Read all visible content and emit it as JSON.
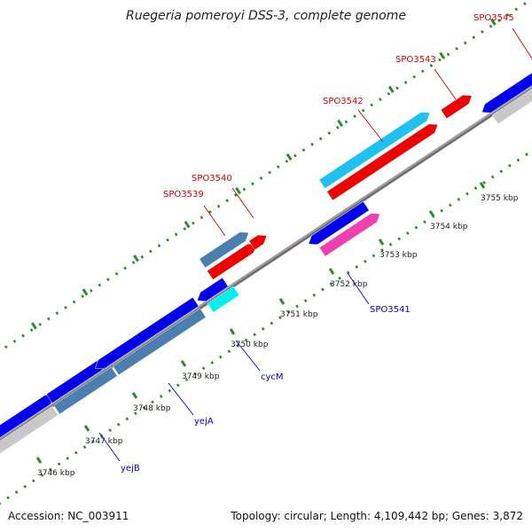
{
  "header": {
    "title": "Ruegeria pomeroyi DSS-3, complete genome"
  },
  "footer": {
    "accession": "Accession: NC_003911",
    "summary": "Topology: circular; Length: 4,109,442 bp; Genes: 3,872"
  },
  "colors": {
    "backbone": "#808080",
    "tick_green": "#2e8b2e",
    "label_forward": "#d00000",
    "label_reverse": "#0000c0",
    "gene_blue": "#0000ee",
    "gene_red": "#ee0000",
    "gene_steel": "#4a7fb0",
    "gene_grey": "#c8c8c8",
    "gene_cyan": "#00f0f0",
    "gene_skyblue": "#20c0f0",
    "gene_magenta": "#f040b0"
  },
  "ticks": [
    {
      "label": "3746 kbp"
    },
    {
      "label": "3747 kbp"
    },
    {
      "label": "3748 kbp"
    },
    {
      "label": "3749 kbp"
    },
    {
      "label": "3750 kbp"
    },
    {
      "label": "3751 kbp"
    },
    {
      "label": "3752 kbp"
    },
    {
      "label": "3753 kbp"
    },
    {
      "label": "3754 kbp"
    },
    {
      "label": "3755 kbp"
    }
  ],
  "gene_labels": [
    {
      "name": "SPO3539",
      "color": "forward"
    },
    {
      "name": "SPO3540",
      "color": "forward"
    },
    {
      "name": "SPO3542",
      "color": "forward"
    },
    {
      "name": "SPO3543",
      "color": "forward"
    },
    {
      "name": "SPO3545",
      "color": "forward"
    },
    {
      "name": "SPO3541",
      "color": "reverse"
    },
    {
      "name": "cycM",
      "color": "reverse"
    },
    {
      "name": "yejA",
      "color": "reverse"
    },
    {
      "name": "yejB",
      "color": "reverse"
    }
  ]
}
